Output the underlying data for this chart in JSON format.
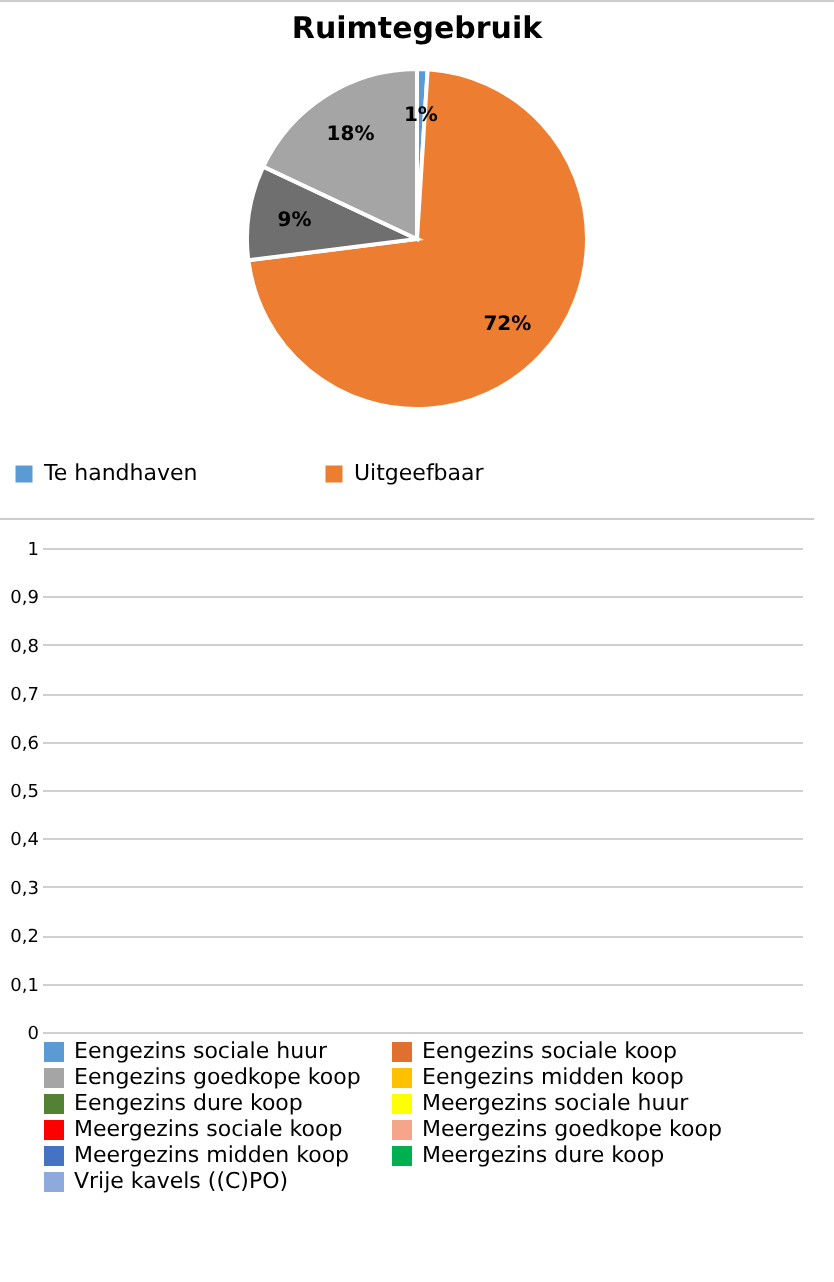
{
  "chart_data": [
    {
      "type": "pie",
      "title": "Ruimtegebruik",
      "categories": [
        "Te handhaven",
        "Uitgeefbaar",
        null,
        null
      ],
      "values": [
        1,
        72,
        9,
        18
      ],
      "colors": [
        "#5b9bd5",
        "#ed7d31",
        "#6f6f6f",
        "#a5a5a5"
      ],
      "value_labels": [
        "1%",
        "72%",
        "9%",
        "18%"
      ],
      "legend": "bottom"
    },
    {
      "type": "bar",
      "categories": [
        null
      ],
      "series": [
        {
          "name": "Eengezins sociale huur",
          "color": "#5b9bd5",
          "values": [
            null
          ]
        },
        {
          "name": "Eengezins sociale koop",
          "color": "#e0702f",
          "values": [
            null
          ]
        },
        {
          "name": "Eengezins goedkope koop",
          "color": "#a5a5a5",
          "values": [
            null
          ]
        },
        {
          "name": "Eengezins midden koop",
          "color": "#ffc000",
          "values": [
            null
          ]
        },
        {
          "name": "Eengezins dure koop",
          "color": "#548235",
          "values": [
            null
          ]
        },
        {
          "name": "Meergezins sociale huur",
          "color": "#ffff00",
          "values": [
            null
          ]
        },
        {
          "name": "Meergezins sociale koop",
          "color": "#ff0000",
          "values": [
            null
          ]
        },
        {
          "name": "Meergezins goedkope koop",
          "color": "#f4a58a",
          "values": [
            null
          ]
        },
        {
          "name": "Meergezins midden koop",
          "color": "#4472c4",
          "values": [
            null
          ]
        },
        {
          "name": "Meergezins dure koop",
          "color": "#00b050",
          "values": [
            null
          ]
        },
        {
          "name": "Vrije kavels ((C)PO)",
          "color": "#8ea9db",
          "values": [
            null
          ]
        }
      ],
      "ylim": [
        0,
        1
      ],
      "yticks": [
        {
          "value": 0,
          "label": "0"
        },
        {
          "value": 0.1,
          "label": "0,1"
        },
        {
          "value": 0.2,
          "label": "0,2"
        },
        {
          "value": 0.3,
          "label": "0,3"
        },
        {
          "value": 0.4,
          "label": "0,4"
        },
        {
          "value": 0.5,
          "label": "0,5"
        },
        {
          "value": 0.6,
          "label": "0,6"
        },
        {
          "value": 0.7,
          "label": "0,7"
        },
        {
          "value": 0.8,
          "label": "0,8"
        },
        {
          "value": 0.9,
          "label": "0,9"
        },
        {
          "value": 1,
          "label": "1"
        }
      ],
      "grid": "y",
      "tick_labels": "y",
      "legend": "bottom"
    }
  ]
}
